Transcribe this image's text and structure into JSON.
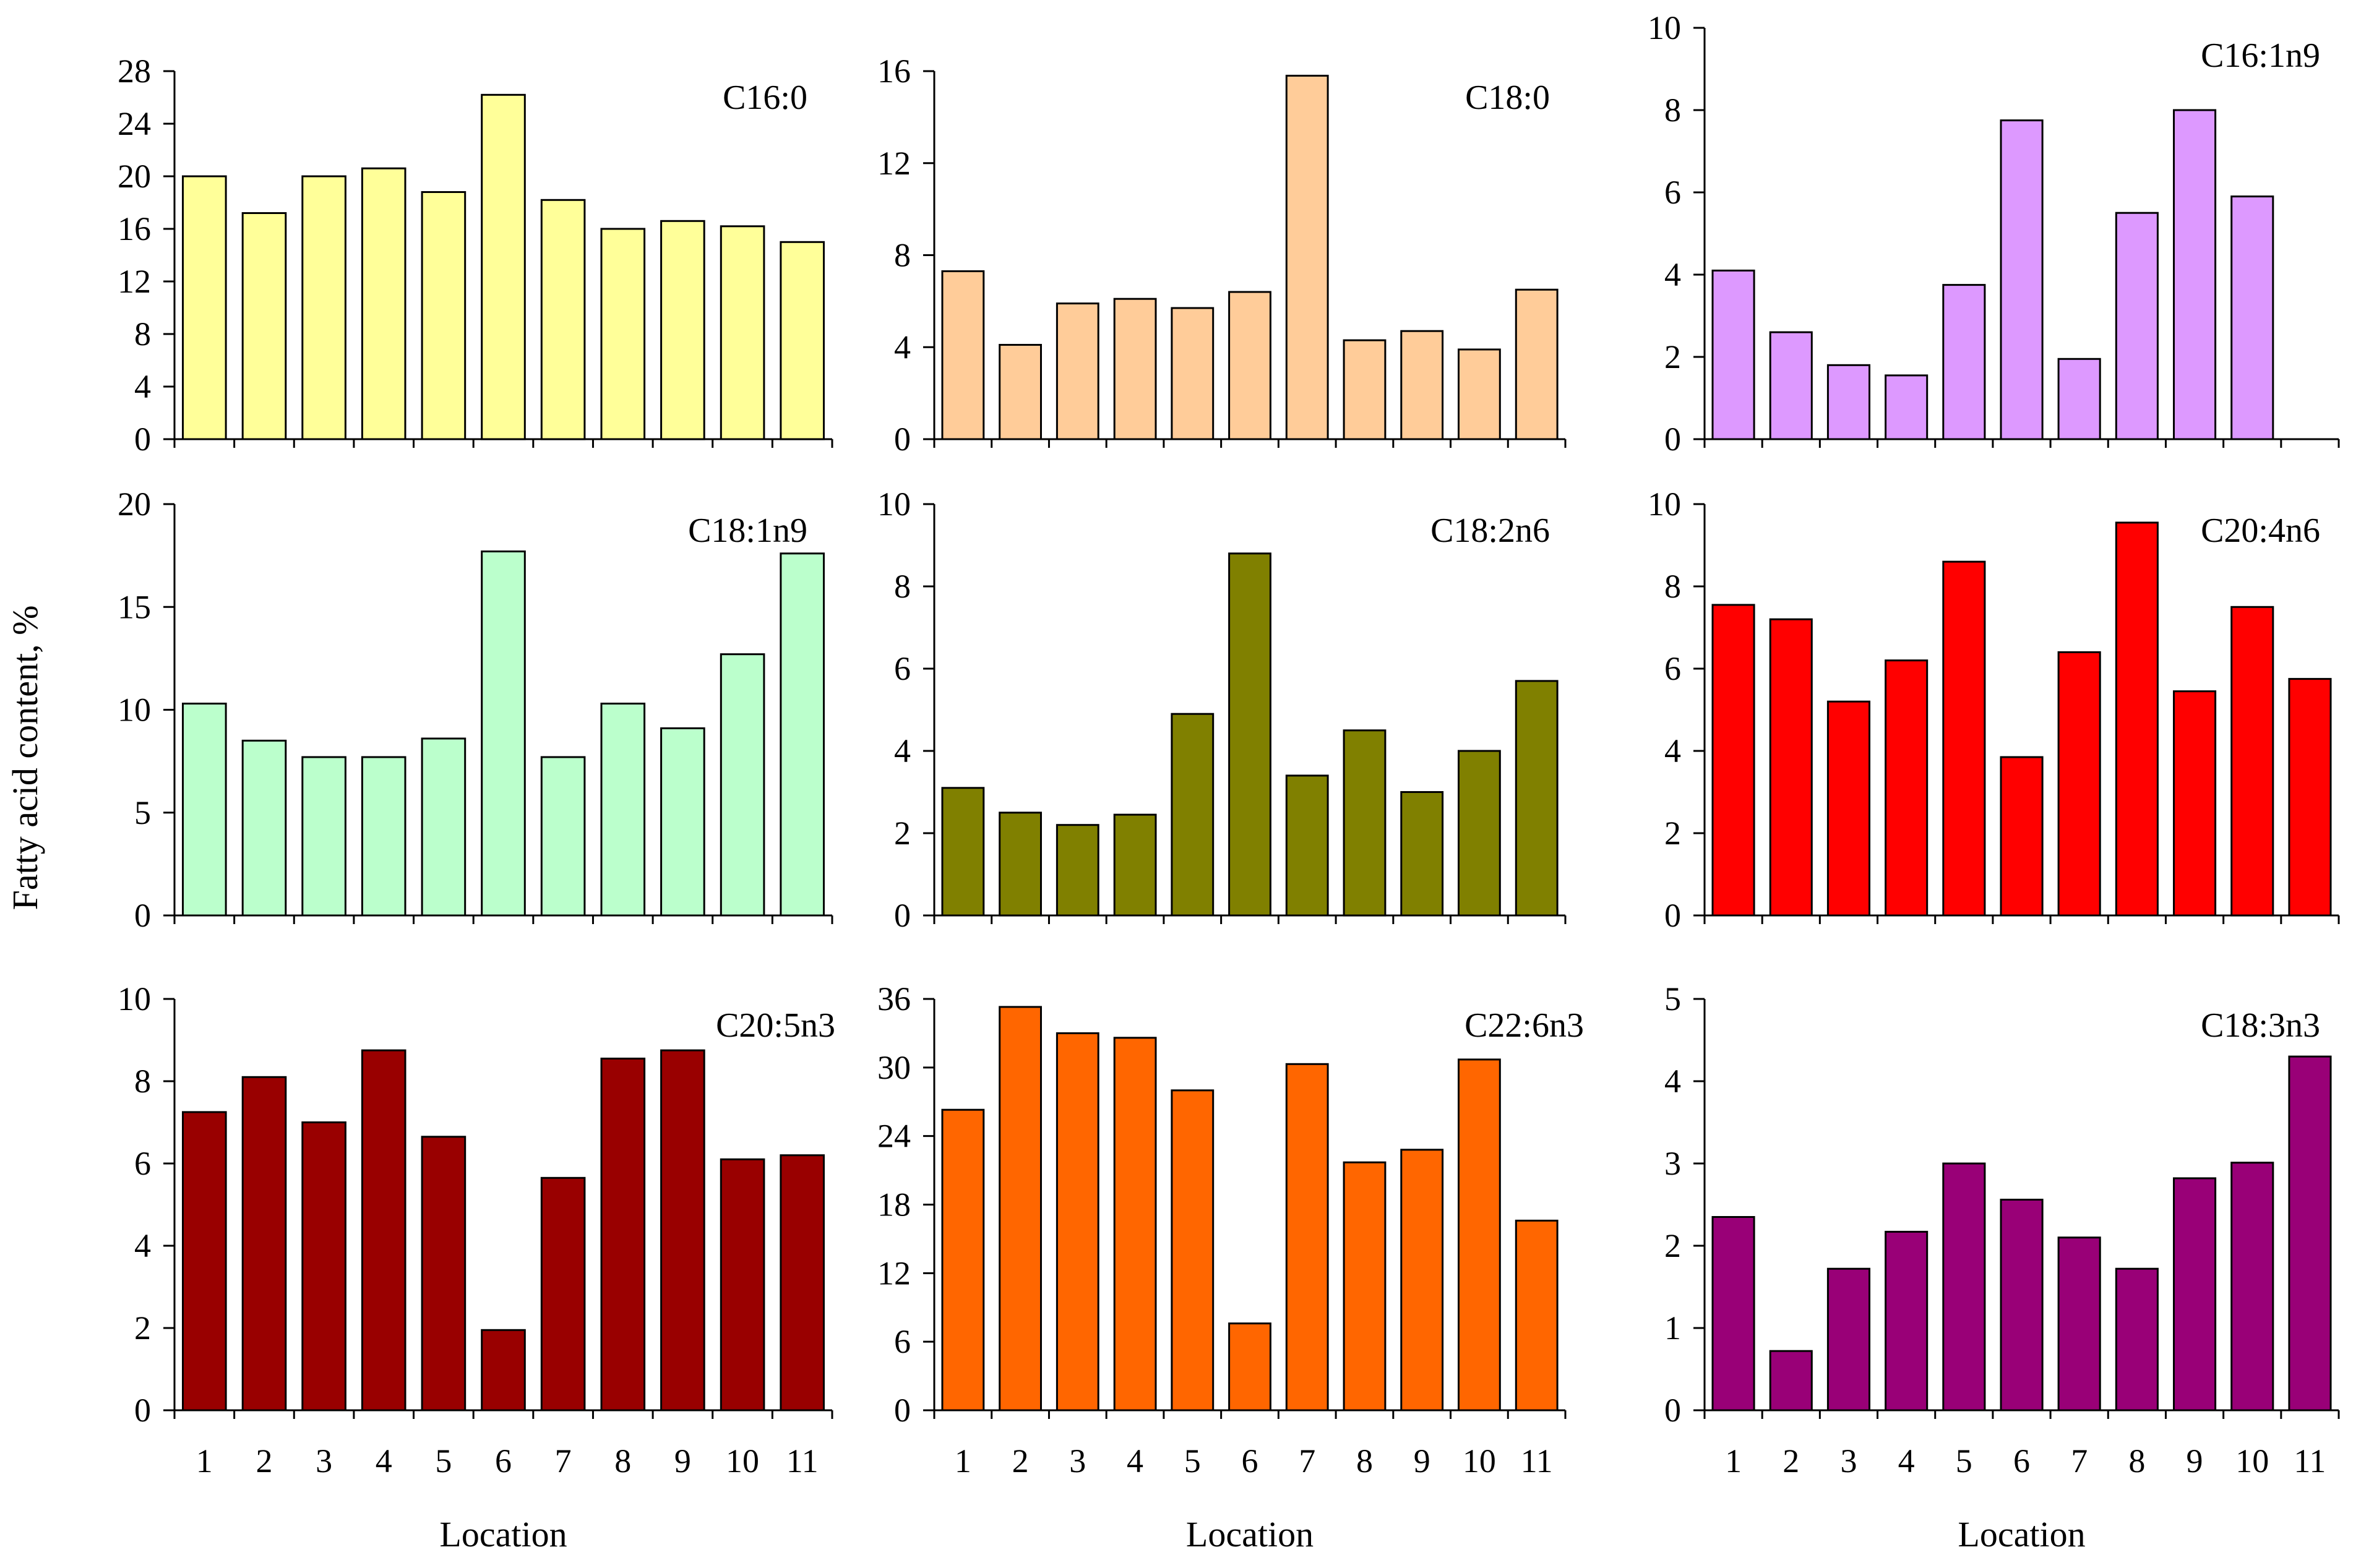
{
  "figure": {
    "ylabel": "Fatty acid content, %",
    "xlabel": "Location"
  },
  "chart_data": [
    {
      "type": "bar",
      "title": "C16:0",
      "color": "#FFFF99",
      "categories": [
        "1",
        "2",
        "3",
        "4",
        "5",
        "6",
        "7",
        "8",
        "9",
        "10",
        "11"
      ],
      "values": [
        20.0,
        17.2,
        20.0,
        20.6,
        18.8,
        26.2,
        18.2,
        16.0,
        16.6,
        16.2,
        15.0
      ],
      "ylim": [
        0,
        28
      ],
      "yticks": [
        0,
        4,
        8,
        12,
        16,
        20,
        24,
        28
      ],
      "xlabel": "",
      "ylabel": ""
    },
    {
      "type": "bar",
      "title": "C18:0",
      "color": "#FFCC99",
      "categories": [
        "1",
        "2",
        "3",
        "4",
        "5",
        "6",
        "7",
        "8",
        "9",
        "10",
        "11"
      ],
      "values": [
        7.3,
        4.1,
        5.9,
        6.1,
        5.7,
        6.4,
        15.8,
        4.3,
        4.7,
        3.9,
        6.5
      ],
      "ylim": [
        0,
        16
      ],
      "yticks": [
        0,
        4,
        8,
        12,
        16
      ],
      "xlabel": "",
      "ylabel": ""
    },
    {
      "type": "bar",
      "title": "C16:1n9",
      "color": "#DD99FF",
      "categories": [
        "1",
        "2",
        "3",
        "4",
        "5",
        "6",
        "7",
        "8",
        "9",
        "10",
        "11"
      ],
      "values": [
        4.1,
        2.6,
        1.8,
        1.55,
        3.75,
        7.75,
        1.95,
        5.5,
        8.0,
        5.9,
        0
      ],
      "ylim": [
        0,
        10
      ],
      "yticks": [
        0,
        2,
        4,
        6,
        8,
        10
      ],
      "xlabel": "",
      "ylabel": ""
    },
    {
      "type": "bar",
      "title": "C18:1n9",
      "color": "#BBFFCC",
      "categories": [
        "1",
        "2",
        "3",
        "4",
        "5",
        "6",
        "7",
        "8",
        "9",
        "10",
        "11"
      ],
      "values": [
        10.3,
        8.5,
        7.7,
        7.7,
        8.6,
        17.7,
        7.7,
        10.3,
        9.1,
        12.7,
        17.6
      ],
      "ylim": [
        0,
        20
      ],
      "yticks": [
        0,
        5,
        10,
        15,
        20
      ],
      "xlabel": "",
      "ylabel": ""
    },
    {
      "type": "bar",
      "title": "C18:2n6",
      "color": "#808000",
      "categories": [
        "1",
        "2",
        "3",
        "4",
        "5",
        "6",
        "7",
        "8",
        "9",
        "10",
        "11"
      ],
      "values": [
        3.1,
        2.5,
        2.2,
        2.45,
        4.9,
        8.8,
        3.4,
        4.5,
        3.0,
        4.0,
        5.7
      ],
      "ylim": [
        0,
        10
      ],
      "yticks": [
        0,
        2,
        4,
        6,
        8,
        10
      ],
      "xlabel": "",
      "ylabel": ""
    },
    {
      "type": "bar",
      "title": "C20:4n6",
      "color": "#FF0000",
      "categories": [
        "1",
        "2",
        "3",
        "4",
        "5",
        "6",
        "7",
        "8",
        "9",
        "10",
        "11"
      ],
      "values": [
        7.55,
        7.2,
        5.2,
        6.2,
        8.6,
        3.85,
        6.4,
        9.55,
        5.45,
        7.5,
        5.75
      ],
      "ylim": [
        0,
        10
      ],
      "yticks": [
        0,
        2,
        4,
        6,
        8,
        10
      ],
      "xlabel": "",
      "ylabel": ""
    },
    {
      "type": "bar",
      "title": "C20:5n3",
      "color": "#990000",
      "categories": [
        "1",
        "2",
        "3",
        "4",
        "5",
        "6",
        "7",
        "8",
        "9",
        "10",
        "11"
      ],
      "values": [
        7.25,
        8.1,
        7.0,
        8.75,
        6.65,
        1.95,
        5.65,
        8.55,
        8.75,
        6.1,
        6.2
      ],
      "ylim": [
        0,
        10
      ],
      "yticks": [
        0,
        2,
        4,
        6,
        8,
        10
      ],
      "xlabel": "Location",
      "ylabel": ""
    },
    {
      "type": "bar",
      "title": "C22:6n3",
      "color": "#FF6600",
      "categories": [
        "1",
        "2",
        "3",
        "4",
        "5",
        "6",
        "7",
        "8",
        "9",
        "10",
        "11"
      ],
      "values": [
        26.3,
        35.3,
        33.0,
        32.6,
        28.0,
        7.6,
        30.3,
        21.7,
        22.8,
        30.7,
        16.6
      ],
      "ylim": [
        0,
        36
      ],
      "yticks": [
        0,
        6,
        12,
        18,
        24,
        30,
        36
      ],
      "xlabel": "Location",
      "ylabel": ""
    },
    {
      "type": "bar",
      "title": "C18:3n3",
      "color": "#990077",
      "categories": [
        "1",
        "2",
        "3",
        "4",
        "5",
        "6",
        "7",
        "8",
        "9",
        "10",
        "11"
      ],
      "values": [
        2.35,
        0.72,
        1.72,
        2.17,
        3.0,
        2.56,
        2.1,
        1.72,
        2.82,
        3.01,
        4.3
      ],
      "ylim": [
        0,
        5
      ],
      "yticks": [
        0,
        1,
        2,
        3,
        4,
        5
      ],
      "xlabel": "Location",
      "ylabel": ""
    }
  ]
}
